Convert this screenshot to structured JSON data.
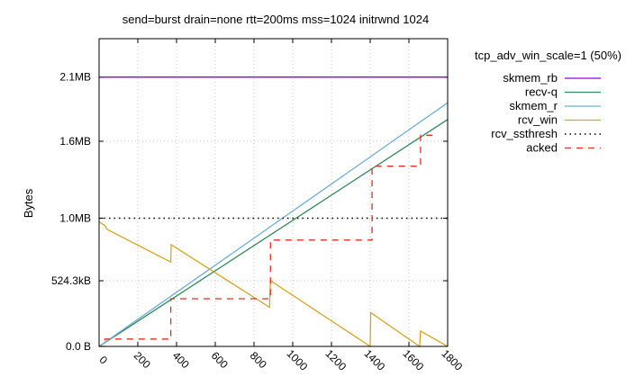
{
  "chart_data": {
    "type": "line",
    "title": "send=burst drain=none rtt=200ms mss=1024  initrwnd 1024",
    "xlabel": "",
    "ylabel": "Bytes",
    "xlim": [
      0,
      1800
    ],
    "ylim": [
      0,
      2516582
    ],
    "x_ticks": [
      0,
      200,
      400,
      600,
      800,
      1000,
      1200,
      1400,
      1600,
      1800
    ],
    "y_ticks": [
      {
        "value": 0,
        "label": "0.0 B"
      },
      {
        "value": 536917,
        "label": "524.3kB"
      },
      {
        "value": 1048576,
        "label": "1.0MB"
      },
      {
        "value": 1677722,
        "label": "1.6MB"
      },
      {
        "value": 2202010,
        "label": "2.1MB"
      }
    ],
    "grid": true,
    "legend_title": "tcp_adv_win_scale=1 (50%)",
    "legend_position": "right",
    "series": [
      {
        "name": "skmem_rb",
        "color": "#9400d3",
        "style": "solid",
        "points": [
          [
            0,
            2202010
          ],
          [
            1800,
            2202010
          ]
        ]
      },
      {
        "name": "recv-q",
        "color": "#2e8b57",
        "style": "solid",
        "points": [
          [
            0,
            0
          ],
          [
            1800,
            1856000
          ]
        ]
      },
      {
        "name": "skmem_r",
        "color": "#6bb0d8",
        "style": "solid",
        "points": [
          [
            0,
            0
          ],
          [
            1800,
            1993000
          ]
        ]
      },
      {
        "name": "rcv_win",
        "color": "#daa520",
        "style": "solid",
        "points": [
          [
            0,
            1020000
          ],
          [
            32,
            985000
          ],
          [
            40,
            958000
          ],
          [
            370,
            690000
          ],
          [
            372,
            832000
          ],
          [
            880,
            320000
          ],
          [
            885,
            538000
          ],
          [
            1400,
            0
          ],
          [
            1403,
            276000
          ],
          [
            1655,
            0
          ],
          [
            1660,
            126000
          ],
          [
            1800,
            0
          ]
        ]
      },
      {
        "name": "rcv_ssthresh",
        "color": "#000000",
        "style": "dotted",
        "points": [
          [
            0,
            1048576
          ],
          [
            1800,
            1048576
          ]
        ]
      },
      {
        "name": "acked",
        "color": "#e0321e",
        "style": "dashed",
        "points": [
          [
            0,
            0
          ],
          [
            30,
            0
          ],
          [
            30,
            60000
          ],
          [
            370,
            60000
          ],
          [
            370,
            390000
          ],
          [
            885,
            390000
          ],
          [
            885,
            870000
          ],
          [
            1410,
            870000
          ],
          [
            1410,
            1474000
          ],
          [
            1660,
            1474000
          ],
          [
            1660,
            1727000
          ],
          [
            1740,
            1727000
          ]
        ]
      }
    ]
  }
}
